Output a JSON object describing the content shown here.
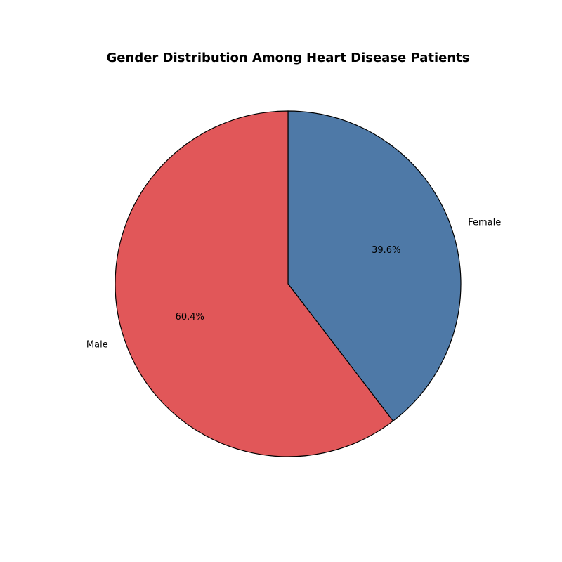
{
  "chart_data": {
    "type": "pie",
    "title": "Gender Distribution Among Heart Disease Patients",
    "categories": [
      "Female",
      "Male"
    ],
    "values": [
      39.6,
      60.4
    ],
    "percent_labels": [
      "39.6%",
      "60.4%"
    ],
    "colors": [
      "#4e79a7",
      "#e15759"
    ],
    "start_angle_deg": 90,
    "direction": "clockwise",
    "legend": "none"
  }
}
